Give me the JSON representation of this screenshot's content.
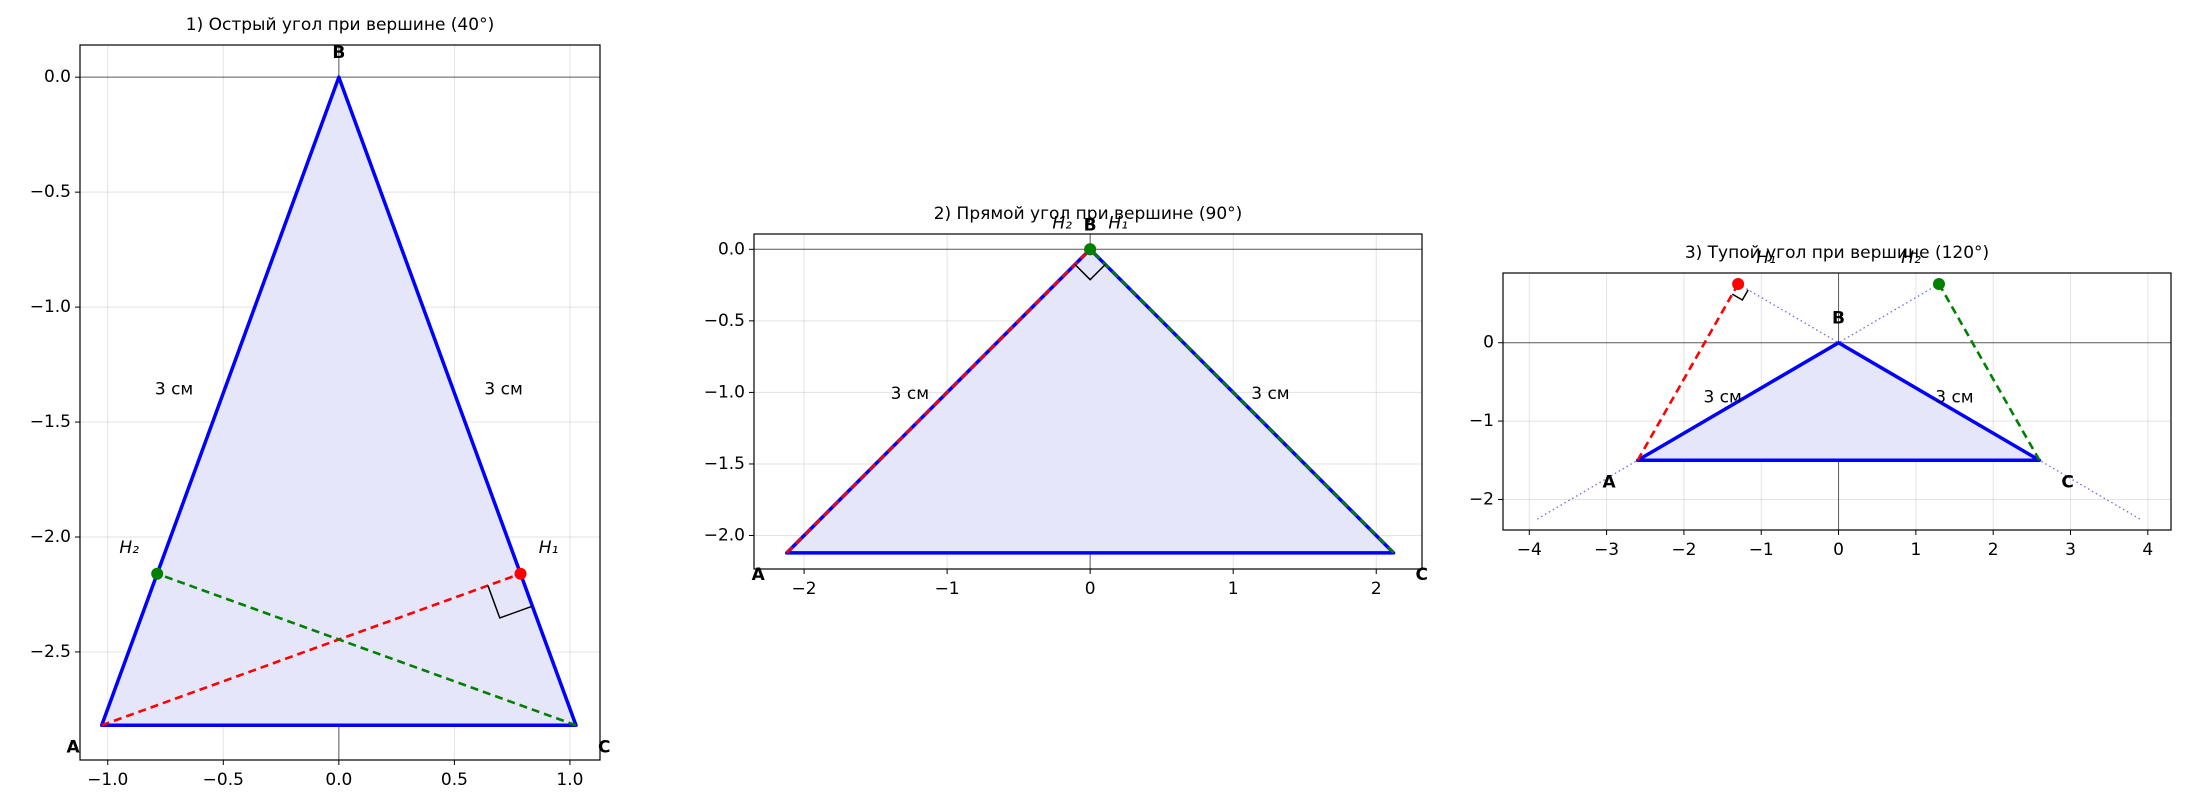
{
  "chart_data": [
    {
      "type": "triangle",
      "title": "1) Острый угол при вершине (40°)",
      "points": [
        {
          "label": "A",
          "x": -1.026,
          "y": -2.819
        },
        {
          "label": "B",
          "x": 0,
          "y": 0
        },
        {
          "label": "C",
          "x": 1.026,
          "y": -2.819
        },
        {
          "label": "H₁",
          "x": 0.786,
          "y": -2.16
        },
        {
          "label": "H₂",
          "x": -0.786,
          "y": -2.16
        }
      ],
      "side_labels": [
        "3 см",
        "3 см"
      ],
      "edge_color": "#0000ff",
      "fill_color": "#e6e6fa",
      "altitude_colors": [
        "#ff0000",
        "#008000"
      ],
      "extensions": false,
      "xlim": [
        -1.12,
        1.13
      ],
      "ylim": [
        -2.97,
        0.14
      ],
      "xticks": [
        {
          "value": -1,
          "label": "−1.0"
        },
        {
          "value": -0.5,
          "label": "−0.5"
        },
        {
          "value": 0,
          "label": "0.0"
        },
        {
          "value": 0.5,
          "label": "0.5"
        },
        {
          "value": 1,
          "label": "1.0"
        }
      ],
      "yticks": [
        {
          "value": 0,
          "label": "0.0"
        },
        {
          "value": -0.5,
          "label": "−0.5"
        },
        {
          "value": -1,
          "label": "−1.0"
        },
        {
          "value": -1.5,
          "label": "−1.5"
        },
        {
          "value": -2,
          "label": "−2.0"
        },
        {
          "value": -2.5,
          "label": "−2.5"
        }
      ],
      "grid": true
    },
    {
      "type": "triangle",
      "title": "2) Прямой угол при вершине (90°)",
      "points": [
        {
          "label": "A",
          "x": -2.121,
          "y": -2.121
        },
        {
          "label": "B",
          "x": 0,
          "y": 0
        },
        {
          "label": "C",
          "x": 2.121,
          "y": -2.121
        },
        {
          "label": "H₁",
          "x": 0,
          "y": 0
        },
        {
          "label": "H₂",
          "x": 0,
          "y": 0
        }
      ],
      "side_labels": [
        "3 см",
        "3 см"
      ],
      "edge_color": "#0000ff",
      "fill_color": "#e6e6fa",
      "altitude_colors": [
        "#ff0000",
        "#008000"
      ],
      "extensions": false,
      "xlim": [
        -2.35,
        2.32
      ],
      "ylim": [
        -2.234,
        0.107
      ],
      "xticks": [
        {
          "value": -2,
          "label": "−2"
        },
        {
          "value": -1,
          "label": "−1"
        },
        0,
        1,
        2
      ],
      "yticks": [
        {
          "value": 0,
          "label": "0.0"
        },
        {
          "value": -0.5,
          "label": "−0.5"
        },
        {
          "value": -1,
          "label": "−1.0"
        },
        {
          "value": -1.5,
          "label": "−1.5"
        },
        {
          "value": -2,
          "label": "−2.0"
        }
      ],
      "grid": true
    },
    {
      "type": "triangle",
      "title": "3) Тупой угол при вершине (120°)",
      "points": [
        {
          "label": "A",
          "x": -2.598,
          "y": -1.5
        },
        {
          "label": "B",
          "x": 0,
          "y": 0
        },
        {
          "label": "C",
          "x": 2.598,
          "y": -1.5
        },
        {
          "label": "H₁",
          "x": -1.299,
          "y": 0.75
        },
        {
          "label": "H₂",
          "x": 1.299,
          "y": 0.75
        }
      ],
      "side_labels": [
        "3 см",
        "3 см"
      ],
      "edge_color": "#0000ff",
      "fill_color": "#e6e6fa",
      "altitude_colors": [
        "#ff0000",
        "#008000"
      ],
      "extensions": true,
      "xlim": [
        -4.34,
        4.3
      ],
      "ylim": [
        -2.39,
        0.89
      ],
      "xticks": [
        {
          "value": -4,
          "label": "−4"
        },
        {
          "value": -3,
          "label": "−3"
        },
        {
          "value": -2,
          "label": "−2"
        },
        {
          "value": -1,
          "label": "−1"
        },
        0,
        1,
        2,
        3,
        4
      ],
      "yticks": [
        0,
        {
          "value": -1,
          "label": "−1"
        },
        {
          "value": -2,
          "label": "−2"
        }
      ],
      "grid": true
    }
  ]
}
